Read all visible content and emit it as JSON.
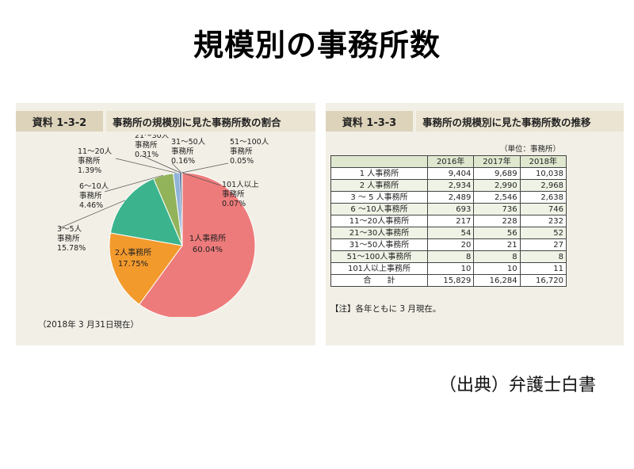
{
  "page": {
    "title": "規模別の事務所数",
    "source": "（出典）弁護士白書"
  },
  "left_panel": {
    "badge": "資料 1-3-2",
    "heading": "事務所の規模別に見た事務所数の割合",
    "date_note": "（2018年 3 月31日現在）"
  },
  "right_panel": {
    "badge": "資料 1-3-3",
    "heading": "事務所の規模別に見た事務所数の推移",
    "unit_note": "（単位：事務所）",
    "footnote": "【注】各年ともに 3 月現在。"
  },
  "chart_data": [
    {
      "type": "pie",
      "title": "事務所の規模別に見た事務所数の割合",
      "unit": "%",
      "slices": [
        {
          "label": "1人事務所",
          "value": 60.04,
          "display": "60.04%",
          "color": "#ee7b7b"
        },
        {
          "label": "2人事務所",
          "value": 17.75,
          "display": "17.75%",
          "color": "#f39a2d"
        },
        {
          "label": "3〜5人事務所",
          "value": 15.78,
          "display": "15.78%",
          "color": "#3bb48e"
        },
        {
          "label": "6〜10人事務所",
          "value": 4.46,
          "display": "4.46%",
          "color": "#92b35a"
        },
        {
          "label": "11〜20人事務所",
          "value": 1.39,
          "display": "1.39%",
          "color": "#8fb4d8"
        },
        {
          "label": "21〜30人事務所",
          "value": 0.31,
          "display": "0.31%",
          "color": "#3a5fa6"
        },
        {
          "label": "31〜50人事務所",
          "value": 0.16,
          "display": "0.16%",
          "color": "#6d6d6d"
        },
        {
          "label": "51〜100人事務所",
          "value": 0.05,
          "display": "0.05%",
          "color": "#a0a0a0"
        },
        {
          "label": "101人以上事務所",
          "value": 0.07,
          "display": "0.07%",
          "color": "#333333"
        }
      ],
      "inside_labels": [
        {
          "line1": "1人事務所",
          "line2": "60.04%"
        },
        {
          "line1": "2人事務所",
          "line2": "17.75%"
        }
      ],
      "outside_labels": [
        {
          "lines": [
            "3〜5人",
            "事務所",
            "15.78%"
          ]
        },
        {
          "lines": [
            "6〜10人",
            "事務所",
            "4.46%"
          ]
        },
        {
          "lines": [
            "11〜20人",
            "事務所",
            "1.39%"
          ]
        },
        {
          "lines": [
            "21〜30人",
            "事務所",
            "0.31%"
          ]
        },
        {
          "lines": [
            "31〜50人",
            "事務所",
            "0.16%"
          ]
        },
        {
          "lines": [
            "51〜100人",
            "事務所",
            "0.05%"
          ]
        },
        {
          "lines": [
            "101人以上",
            "事務所",
            "0.07%"
          ]
        }
      ]
    },
    {
      "type": "table",
      "title": "事務所の規模別に見た事務所数の推移",
      "columns": [
        "",
        "2016年",
        "2017年",
        "2018年"
      ],
      "rows": [
        {
          "label": "1 人事務所",
          "values": [
            "9,404",
            "9,689",
            "10,038"
          ]
        },
        {
          "label": "2 人事務所",
          "values": [
            "2,934",
            "2,990",
            "2,968"
          ]
        },
        {
          "label": "3 〜 5 人事務所",
          "values": [
            "2,489",
            "2,546",
            "2,638"
          ]
        },
        {
          "label": "6 〜10人事務所",
          "values": [
            "693",
            "736",
            "746"
          ]
        },
        {
          "label": "11〜20人事務所",
          "values": [
            "217",
            "228",
            "232"
          ]
        },
        {
          "label": "21〜30人事務所",
          "values": [
            "54",
            "56",
            "52"
          ]
        },
        {
          "label": "31〜50人事務所",
          "values": [
            "20",
            "21",
            "27"
          ]
        },
        {
          "label": "51〜100人事務所",
          "values": [
            "8",
            "8",
            "8"
          ]
        },
        {
          "label": "101人以上事務所",
          "values": [
            "10",
            "10",
            "11"
          ]
        },
        {
          "label": "合　　計",
          "values": [
            "15,829",
            "16,284",
            "16,720"
          ]
        }
      ]
    }
  ]
}
